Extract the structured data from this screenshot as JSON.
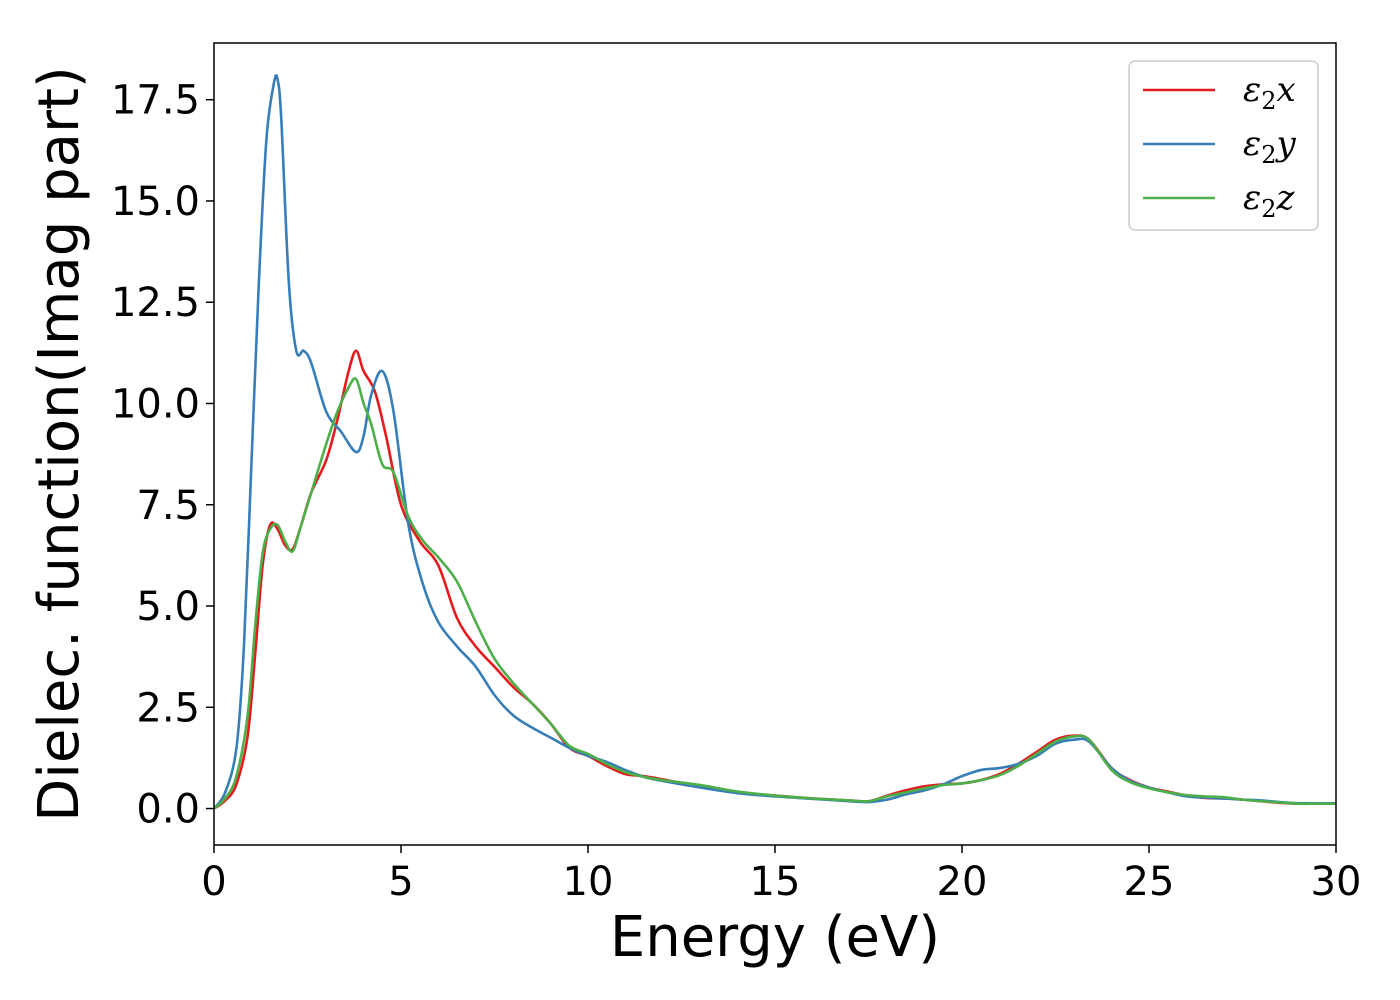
{
  "chart_data": {
    "type": "line",
    "title": "",
    "xlabel": "Energy (eV)",
    "ylabel": "Dielec. function(Imag part)",
    "xlim": [
      0,
      30
    ],
    "ylim": [
      -0.9,
      18.9
    ],
    "grid": false,
    "legend_position": "top-right",
    "xticks": [
      0,
      5,
      10,
      15,
      20,
      25,
      30
    ],
    "xtick_labels": [
      "0",
      "5",
      "10",
      "15",
      "20",
      "25",
      "30"
    ],
    "yticks": [
      0,
      2.5,
      5,
      7.5,
      10,
      12.5,
      15,
      17.5
    ],
    "ytick_labels": [
      "0.0",
      "2.5",
      "5.0",
      "7.5",
      "10.0",
      "12.5",
      "15.0",
      "17.5"
    ],
    "series": [
      {
        "name": "ε₂x",
        "legend_base": "ε",
        "legend_sub": "2",
        "legend_var": "x",
        "color": "#e41a1c",
        "x": [
          0,
          0.3,
          0.6,
          0.9,
          1.1,
          1.3,
          1.5,
          1.7,
          1.9,
          2.1,
          2.3,
          2.6,
          3.0,
          3.3,
          3.6,
          3.8,
          4.0,
          4.3,
          4.6,
          5.0,
          5.5,
          6.0,
          6.5,
          7.0,
          7.5,
          8.0,
          8.5,
          9.0,
          9.5,
          10.0,
          10.5,
          11.0,
          11.5,
          12.0,
          13.0,
          14.0,
          15.0,
          16.0,
          17.0,
          17.5,
          18.0,
          18.5,
          19.0,
          19.5,
          20.0,
          20.5,
          21.0,
          21.5,
          22.0,
          22.5,
          23.0,
          23.4,
          24.0,
          24.5,
          25.0,
          25.5,
          26.0,
          26.5,
          27.0,
          27.5,
          28.0,
          28.5,
          29.0,
          29.5,
          30.0
        ],
        "y": [
          0.0,
          0.2,
          0.6,
          1.8,
          3.8,
          6.0,
          7.0,
          6.9,
          6.5,
          6.4,
          6.9,
          7.8,
          8.6,
          9.6,
          10.8,
          11.3,
          10.8,
          10.3,
          9.2,
          7.5,
          6.6,
          6.0,
          4.7,
          4.0,
          3.5,
          3.0,
          2.6,
          2.1,
          1.5,
          1.3,
          1.05,
          0.85,
          0.8,
          0.72,
          0.55,
          0.4,
          0.32,
          0.25,
          0.2,
          0.18,
          0.32,
          0.45,
          0.55,
          0.6,
          0.62,
          0.7,
          0.85,
          1.1,
          1.4,
          1.7,
          1.8,
          1.7,
          1.0,
          0.7,
          0.52,
          0.42,
          0.32,
          0.26,
          0.25,
          0.22,
          0.18,
          0.14,
          0.12,
          0.12,
          0.12
        ]
      },
      {
        "name": "ε₂y",
        "legend_base": "ε",
        "legend_sub": "2",
        "legend_var": "y",
        "color": "#377eb8",
        "x": [
          0,
          0.3,
          0.6,
          0.8,
          1.0,
          1.2,
          1.4,
          1.6,
          1.7,
          1.8,
          2.0,
          2.2,
          2.4,
          2.6,
          3.0,
          3.4,
          3.8,
          4.0,
          4.2,
          4.5,
          4.8,
          5.2,
          5.6,
          6.0,
          6.5,
          7.0,
          7.5,
          8.0,
          8.5,
          9.0,
          9.5,
          10.0,
          10.5,
          11.0,
          11.5,
          12.0,
          13.0,
          14.0,
          15.0,
          16.0,
          17.0,
          17.5,
          18.0,
          18.5,
          19.0,
          19.5,
          20.0,
          20.5,
          21.0,
          21.5,
          22.0,
          22.5,
          23.0,
          23.4,
          24.0,
          24.5,
          25.0,
          25.5,
          26.0,
          26.5,
          27.0,
          27.5,
          28.0,
          28.5,
          29.0,
          29.5,
          30.0
        ],
        "y": [
          0.0,
          0.4,
          1.5,
          4.0,
          8.5,
          13.0,
          16.5,
          17.9,
          18.0,
          17.0,
          13.0,
          11.3,
          11.3,
          11.0,
          9.8,
          9.3,
          8.8,
          9.2,
          10.2,
          10.8,
          9.8,
          7.0,
          5.5,
          4.6,
          4.0,
          3.5,
          2.8,
          2.3,
          2.0,
          1.75,
          1.5,
          1.3,
          1.15,
          0.95,
          0.78,
          0.68,
          0.52,
          0.38,
          0.3,
          0.24,
          0.18,
          0.16,
          0.22,
          0.35,
          0.45,
          0.6,
          0.8,
          0.95,
          1.0,
          1.1,
          1.3,
          1.6,
          1.7,
          1.65,
          1.0,
          0.68,
          0.52,
          0.4,
          0.3,
          0.27,
          0.25,
          0.22,
          0.2,
          0.16,
          0.13,
          0.13,
          0.13
        ]
      },
      {
        "name": "ε₂z",
        "legend_base": "ε",
        "legend_sub": "2",
        "legend_var": "z",
        "color": "#4daf4a",
        "x": [
          0,
          0.3,
          0.6,
          0.9,
          1.1,
          1.3,
          1.5,
          1.7,
          1.9,
          2.1,
          2.3,
          2.6,
          3.0,
          3.3,
          3.6,
          3.8,
          4.0,
          4.2,
          4.5,
          4.8,
          5.2,
          5.6,
          6.0,
          6.5,
          7.0,
          7.5,
          8.0,
          8.5,
          9.0,
          9.5,
          10.0,
          10.5,
          11.0,
          11.5,
          12.0,
          13.0,
          14.0,
          15.0,
          16.0,
          17.0,
          17.5,
          18.0,
          18.5,
          19.0,
          19.5,
          20.0,
          20.5,
          21.0,
          21.5,
          22.0,
          22.5,
          23.0,
          23.4,
          24.0,
          24.5,
          25.0,
          25.5,
          26.0,
          26.5,
          27.0,
          27.5,
          28.0,
          28.5,
          29.0,
          29.5,
          30.0
        ],
        "y": [
          0.0,
          0.25,
          0.8,
          2.3,
          4.5,
          6.3,
          6.9,
          7.0,
          6.6,
          6.35,
          6.9,
          7.8,
          9.0,
          9.8,
          10.4,
          10.6,
          10.0,
          9.5,
          8.5,
          8.3,
          7.2,
          6.6,
          6.2,
          5.6,
          4.6,
          3.7,
          3.1,
          2.6,
          2.1,
          1.55,
          1.35,
          1.1,
          0.9,
          0.78,
          0.7,
          0.58,
          0.42,
          0.32,
          0.25,
          0.2,
          0.18,
          0.3,
          0.4,
          0.5,
          0.58,
          0.62,
          0.7,
          0.82,
          1.05,
          1.35,
          1.65,
          1.78,
          1.7,
          0.95,
          0.65,
          0.5,
          0.4,
          0.33,
          0.3,
          0.28,
          0.22,
          0.18,
          0.15,
          0.12,
          0.12,
          0.12
        ]
      }
    ]
  }
}
